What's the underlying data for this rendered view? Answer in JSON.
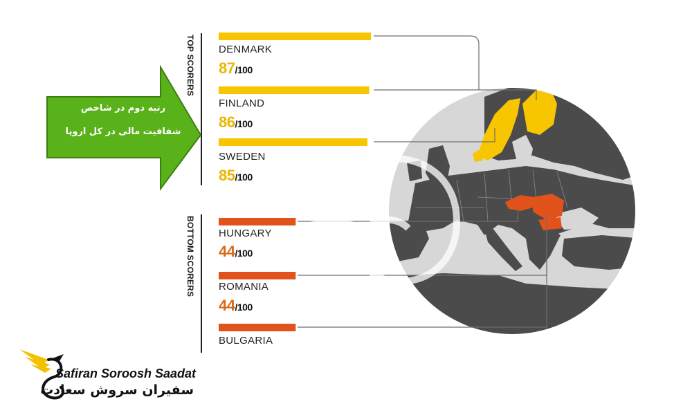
{
  "arrow_callout": {
    "line1": "رتبه دوم در شاخص",
    "line2": "شفافیت مالی در کل اروپا"
  },
  "top_label": "TOP SCORERS",
  "bottom_label": "BOTTOM SCORERS",
  "chart_data": {
    "type": "bar",
    "categories": [
      "DENMARK",
      "FINLAND",
      "SWEDEN",
      "HUNGARY",
      "ROMANIA",
      "BULGARIA"
    ],
    "values": [
      87,
      86,
      85,
      44,
      44,
      null
    ],
    "score_labels": [
      "87",
      "86",
      "85",
      "44",
      "44",
      ""
    ],
    "score_max": "/100",
    "groups": {
      "top": [
        "DENMARK",
        "FINLAND",
        "SWEDEN"
      ],
      "bottom": [
        "HUNGARY",
        "ROMANIA",
        "BULGARIA"
      ]
    }
  },
  "colors": {
    "top_bar": "#f7c600",
    "top_score": "#e9b600",
    "bottom_bar": "#e2531b",
    "bottom_score": "#d96a1c",
    "arrow": "#59b21a",
    "arrow_border": "#3d7f0f",
    "map_sea": "#d7d7d7",
    "map_land": "#4b4b4c"
  },
  "logo": {
    "latin": "Safiran Soroosh Saadat",
    "persian": "سفیران سروش سعادت"
  }
}
